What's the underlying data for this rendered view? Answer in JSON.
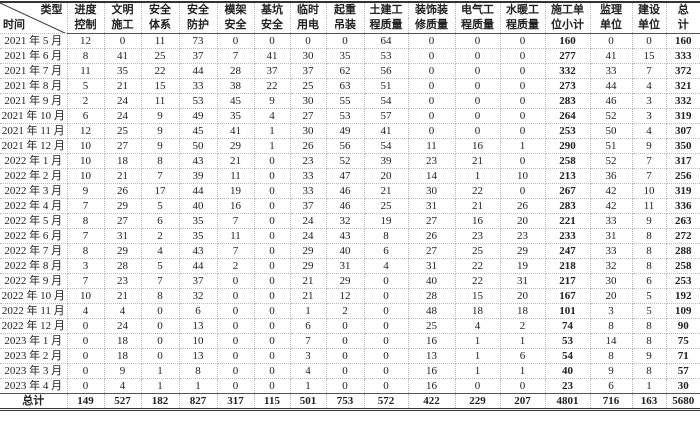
{
  "corner": {
    "type_label": "类型",
    "time_label": "时间"
  },
  "columns": [
    [
      "进度",
      "控制"
    ],
    [
      "文明",
      "施工"
    ],
    [
      "安全",
      "体系"
    ],
    [
      "安全",
      "防护"
    ],
    [
      "模架",
      "安全"
    ],
    [
      "基坑",
      "安全"
    ],
    [
      "临时",
      "用电"
    ],
    [
      "起重",
      "吊装"
    ],
    [
      "土建工",
      "程质量"
    ],
    [
      "装饰装",
      "修质量"
    ],
    [
      "电气工",
      "程质量"
    ],
    [
      "水暖工",
      "程质量"
    ],
    [
      "施工单",
      "位小计"
    ],
    [
      "监理",
      "单位"
    ],
    [
      "建设",
      "单位"
    ],
    [
      "总",
      "计"
    ]
  ],
  "rows": [
    {
      "time": "2021 年 5 月",
      "values": [
        12,
        0,
        11,
        73,
        0,
        0,
        0,
        0,
        64,
        0,
        0,
        0,
        160,
        0,
        0,
        160
      ]
    },
    {
      "time": "2021 年 6 月",
      "values": [
        8,
        41,
        25,
        37,
        7,
        41,
        30,
        35,
        53,
        0,
        0,
        0,
        277,
        41,
        15,
        333
      ]
    },
    {
      "time": "2021 年 7 月",
      "values": [
        11,
        35,
        22,
        44,
        28,
        37,
        37,
        62,
        56,
        0,
        0,
        0,
        332,
        33,
        7,
        372
      ]
    },
    {
      "time": "2021 年 8 月",
      "values": [
        5,
        21,
        15,
        33,
        38,
        22,
        25,
        63,
        51,
        0,
        0,
        0,
        273,
        44,
        4,
        321
      ]
    },
    {
      "time": "2021 年 9 月",
      "values": [
        2,
        24,
        11,
        53,
        45,
        9,
        30,
        55,
        54,
        0,
        0,
        0,
        283,
        46,
        3,
        332
      ]
    },
    {
      "time": "2021 年 10 月",
      "values": [
        6,
        24,
        9,
        49,
        35,
        4,
        27,
        53,
        57,
        0,
        0,
        0,
        264,
        52,
        3,
        319
      ]
    },
    {
      "time": "2021 年 11 月",
      "values": [
        12,
        25,
        9,
        45,
        41,
        1,
        30,
        49,
        41,
        0,
        0,
        0,
        253,
        50,
        4,
        307
      ]
    },
    {
      "time": "2021 年 12 月",
      "values": [
        10,
        27,
        9,
        50,
        29,
        1,
        26,
        56,
        54,
        11,
        16,
        1,
        290,
        51,
        9,
        350
      ]
    },
    {
      "time": "2022 年 1 月",
      "values": [
        10,
        18,
        8,
        43,
        21,
        0,
        23,
        52,
        39,
        23,
        21,
        0,
        258,
        52,
        7,
        317
      ]
    },
    {
      "time": "2022 年 2 月",
      "values": [
        10,
        21,
        7,
        39,
        11,
        0,
        33,
        47,
        20,
        14,
        1,
        10,
        213,
        36,
        7,
        256
      ]
    },
    {
      "time": "2022 年 3 月",
      "values": [
        9,
        26,
        17,
        44,
        19,
        0,
        33,
        46,
        21,
        30,
        22,
        0,
        267,
        42,
        10,
        319
      ]
    },
    {
      "time": "2022 年 4 月",
      "values": [
        7,
        29,
        5,
        40,
        16,
        0,
        37,
        46,
        25,
        31,
        21,
        26,
        283,
        42,
        11,
        336
      ]
    },
    {
      "time": "2022 年 5 月",
      "values": [
        8,
        27,
        6,
        35,
        7,
        0,
        24,
        32,
        19,
        27,
        16,
        20,
        221,
        33,
        9,
        263
      ]
    },
    {
      "time": "2022 年 6 月",
      "values": [
        7,
        31,
        2,
        35,
        11,
        0,
        24,
        43,
        8,
        26,
        23,
        23,
        233,
        31,
        8,
        272
      ]
    },
    {
      "time": "2022 年 7 月",
      "values": [
        8,
        29,
        4,
        43,
        7,
        0,
        29,
        40,
        6,
        27,
        25,
        29,
        247,
        33,
        8,
        288
      ]
    },
    {
      "time": "2022 年 8 月",
      "values": [
        3,
        28,
        5,
        44,
        2,
        0,
        29,
        31,
        4,
        31,
        22,
        19,
        218,
        32,
        8,
        258
      ]
    },
    {
      "time": "2022 年 9 月",
      "values": [
        7,
        23,
        7,
        37,
        0,
        0,
        21,
        29,
        0,
        40,
        22,
        31,
        217,
        30,
        6,
        253
      ]
    },
    {
      "time": "2022 年 10 月",
      "values": [
        10,
        21,
        8,
        32,
        0,
        0,
        21,
        12,
        0,
        28,
        15,
        20,
        167,
        20,
        5,
        192
      ]
    },
    {
      "time": "2022 年 11 月",
      "values": [
        4,
        4,
        0,
        6,
        0,
        0,
        1,
        2,
        0,
        48,
        18,
        18,
        101,
        3,
        5,
        109
      ]
    },
    {
      "time": "2022 年 12 月",
      "values": [
        0,
        24,
        0,
        13,
        0,
        0,
        6,
        0,
        0,
        25,
        4,
        2,
        74,
        8,
        8,
        90
      ]
    },
    {
      "time": "2023 年 1 月",
      "values": [
        0,
        18,
        0,
        10,
        0,
        0,
        7,
        0,
        0,
        16,
        1,
        1,
        53,
        14,
        8,
        75
      ]
    },
    {
      "time": "2023 年 2 月",
      "values": [
        0,
        18,
        0,
        13,
        0,
        0,
        3,
        0,
        0,
        13,
        1,
        6,
        54,
        8,
        9,
        71
      ]
    },
    {
      "time": "2023 年 3 月",
      "values": [
        0,
        9,
        1,
        8,
        0,
        0,
        4,
        0,
        0,
        16,
        1,
        1,
        40,
        9,
        8,
        57
      ]
    },
    {
      "time": "2023 年 4 月",
      "values": [
        0,
        4,
        1,
        1,
        0,
        0,
        1,
        0,
        0,
        16,
        0,
        0,
        23,
        6,
        1,
        30
      ]
    }
  ],
  "total": {
    "label": "总计",
    "values": [
      149,
      527,
      182,
      827,
      317,
      115,
      501,
      753,
      572,
      422,
      229,
      207,
      4801,
      716,
      163,
      5680
    ]
  }
}
